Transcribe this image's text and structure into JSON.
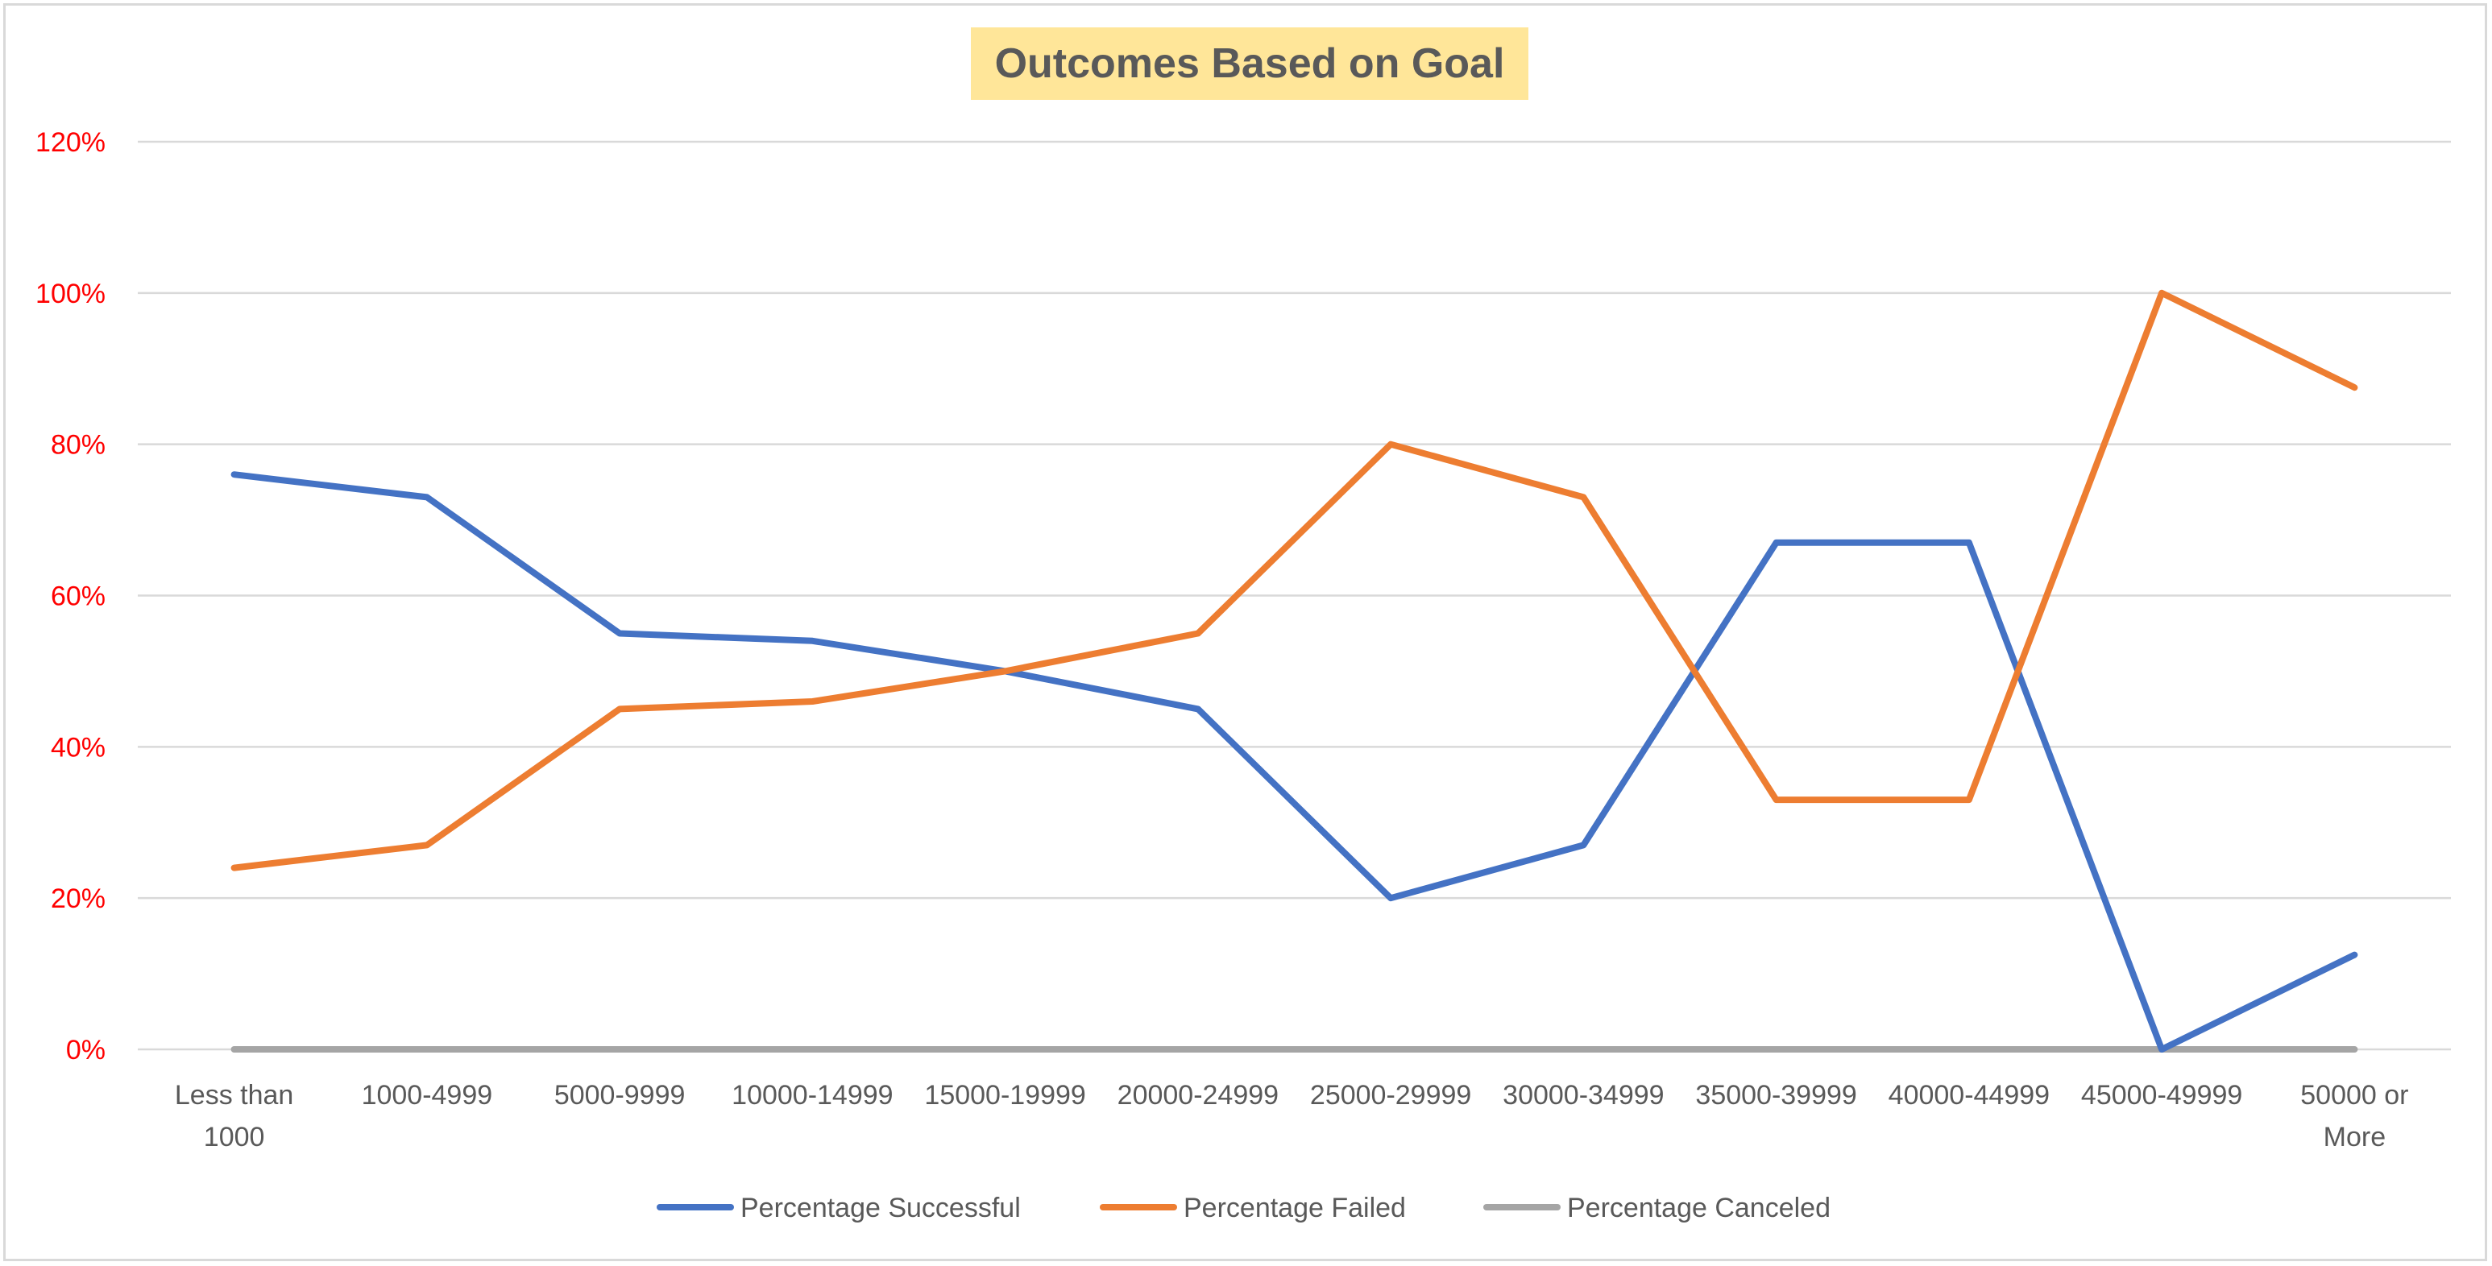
{
  "chart_data": {
    "type": "line",
    "title": "Outcomes Based on Goal",
    "xlabel": "",
    "ylabel": "",
    "ylim": [
      0,
      1.2
    ],
    "yticks": [
      {
        "value": 0,
        "label": "0%"
      },
      {
        "value": 0.2,
        "label": "20%"
      },
      {
        "value": 0.4,
        "label": "40%"
      },
      {
        "value": 0.6,
        "label": "60%"
      },
      {
        "value": 0.8,
        "label": "80%"
      },
      {
        "value": 1.0,
        "label": "100%"
      },
      {
        "value": 1.2,
        "label": "120%"
      }
    ],
    "grid": true,
    "legend_position": "bottom",
    "categories": [
      [
        "Less than",
        "1000"
      ],
      [
        "1000-4999"
      ],
      [
        "5000-9999"
      ],
      [
        "10000-14999"
      ],
      [
        "15000-19999"
      ],
      [
        "20000-24999"
      ],
      [
        "25000-29999"
      ],
      [
        "30000-34999"
      ],
      [
        "35000-39999"
      ],
      [
        "40000-44999"
      ],
      [
        "45000-49999"
      ],
      [
        "50000 or",
        "More"
      ]
    ],
    "series": [
      {
        "name": "Percentage Successful",
        "color": "#4472c4",
        "values": [
          0.76,
          0.73,
          0.55,
          0.54,
          0.5,
          0.45,
          0.2,
          0.27,
          0.67,
          0.67,
          0.0,
          0.125
        ]
      },
      {
        "name": "Percentage Failed",
        "color": "#ed7d31",
        "values": [
          0.24,
          0.27,
          0.45,
          0.46,
          0.5,
          0.55,
          0.8,
          0.73,
          0.33,
          0.33,
          1.0,
          0.875
        ]
      },
      {
        "name": "Percentage Canceled",
        "color": "#a5a5a5",
        "values": [
          0,
          0,
          0,
          0,
          0,
          0,
          0,
          0,
          0,
          0,
          0,
          0
        ]
      }
    ],
    "title_background": "#ffe699",
    "tick_label_color": "#ff0000"
  }
}
